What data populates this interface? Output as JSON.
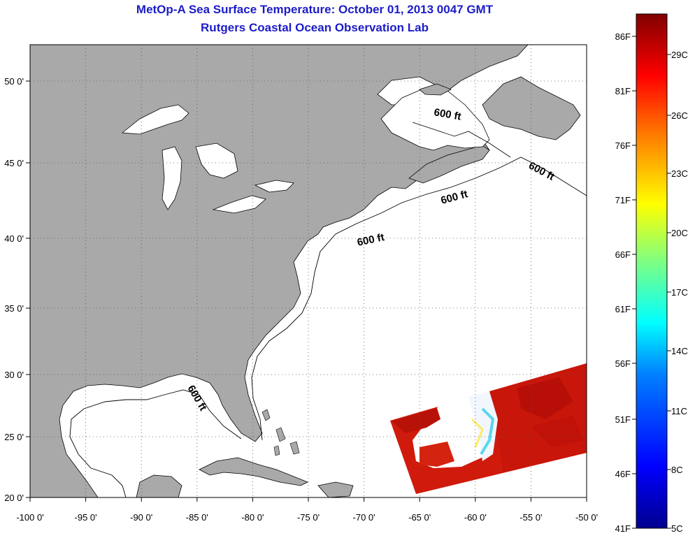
{
  "title": "MetOp-A Sea Surface Temperature:  October 01, 2013 0047 GMT",
  "subtitle": "Rutgers Coastal Ocean Observation Lab",
  "map": {
    "lon_ticks": [
      "-100 0'",
      "-95 0'",
      "-90 0'",
      "-85 0'",
      "-80 0'",
      "-75 0'",
      "-70 0'",
      "-65 0'",
      "-60 0'",
      "-55 0'",
      "-50 0'"
    ],
    "lat_ticks": [
      "50 0'",
      "45 0'",
      "40 0'",
      "35 0'",
      "30 0'",
      "25 0'",
      "20 0'"
    ],
    "lon_range": [
      -100,
      -50
    ],
    "lat_range": [
      20,
      52
    ],
    "contour_label": "600 ft",
    "land_color": "#a9a9a9",
    "ocean_color": "#ffffff"
  },
  "colorbar": {
    "f_labels": [
      "86F",
      "81F",
      "76F",
      "71F",
      "66F",
      "61F",
      "56F",
      "51F",
      "46F",
      "41F"
    ],
    "c_labels": [
      "29C",
      "26C",
      "23C",
      "20C",
      "17C",
      "14C",
      "11C",
      "8C",
      "5C"
    ],
    "colormap": [
      "#00008f",
      "#0000ff",
      "#0080ff",
      "#00ffff",
      "#80ff80",
      "#ffff00",
      "#ff8000",
      "#ff0000",
      "#800000"
    ]
  }
}
